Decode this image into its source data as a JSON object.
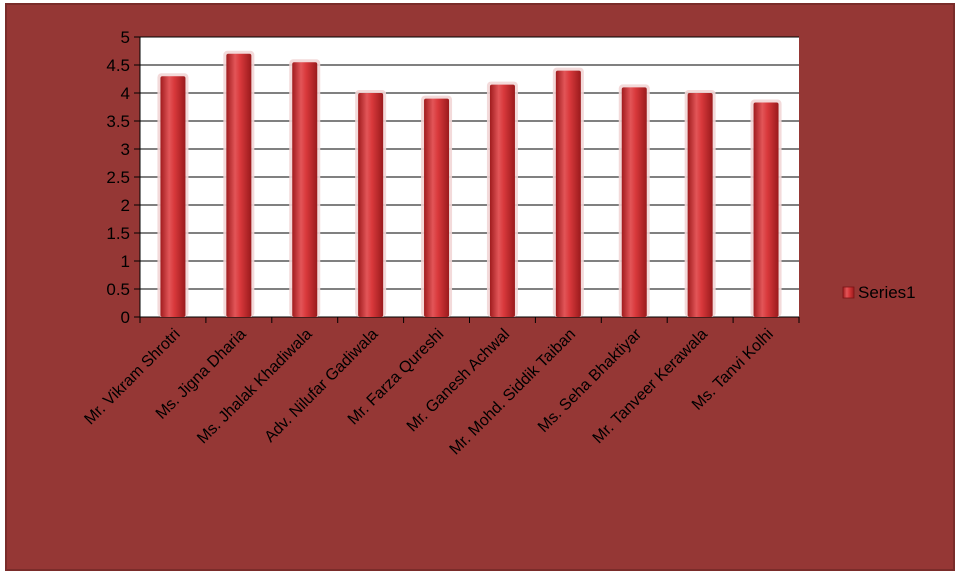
{
  "chart_data": {
    "type": "bar",
    "categories": [
      "Mr. Vikram Shrotri",
      "Ms. Jigna Dharia",
      "Ms. Jhalak Khadiwala",
      "Adv. Nilufar Gadiwala",
      "Mr. Farza Qureshi",
      "Mr. Ganesh Achwal",
      "Mr. Mohd. Siddik Taiban",
      "Ms. Seha Bhaktiyar",
      "Mr. Tanveer Kerawala",
      "Ms. Tanvi Kolhi"
    ],
    "series": [
      {
        "name": "Series1",
        "values": [
          4.3,
          4.7,
          4.55,
          4.0,
          3.9,
          4.15,
          4.4,
          4.1,
          4.0,
          3.83
        ]
      }
    ],
    "yticks": [
      "0",
      "0.5",
      "1",
      "1.5",
      "2",
      "2.5",
      "3",
      "3.5",
      "4",
      "4.5",
      "5"
    ],
    "ylim": [
      0,
      5
    ],
    "grid": true,
    "legend": "right",
    "colors": {
      "background": "#953735",
      "plot_area": "#ffffff",
      "bar": "#c0282a",
      "bar_light": "#f08080",
      "gridline": "#000000"
    }
  }
}
